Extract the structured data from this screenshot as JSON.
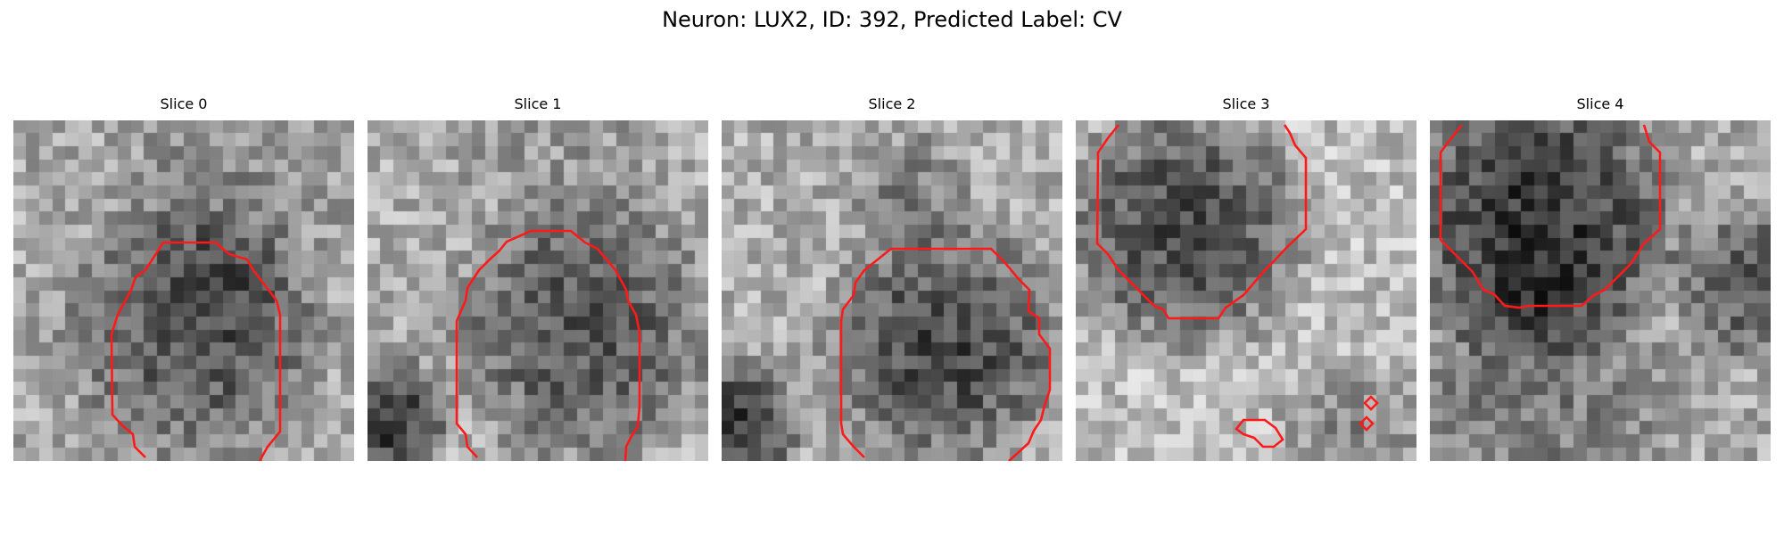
{
  "figure": {
    "title": "Neuron: LUX2, ID: 392, Predicted Label: CV"
  },
  "slices": [
    {
      "title": "Slice 0"
    },
    {
      "title": "Slice 1"
    },
    {
      "title": "Slice 2"
    },
    {
      "title": "Slice 3"
    },
    {
      "title": "Slice 4"
    }
  ],
  "colors": {
    "contour": "#ff1a1a",
    "colormap": "gray"
  }
}
